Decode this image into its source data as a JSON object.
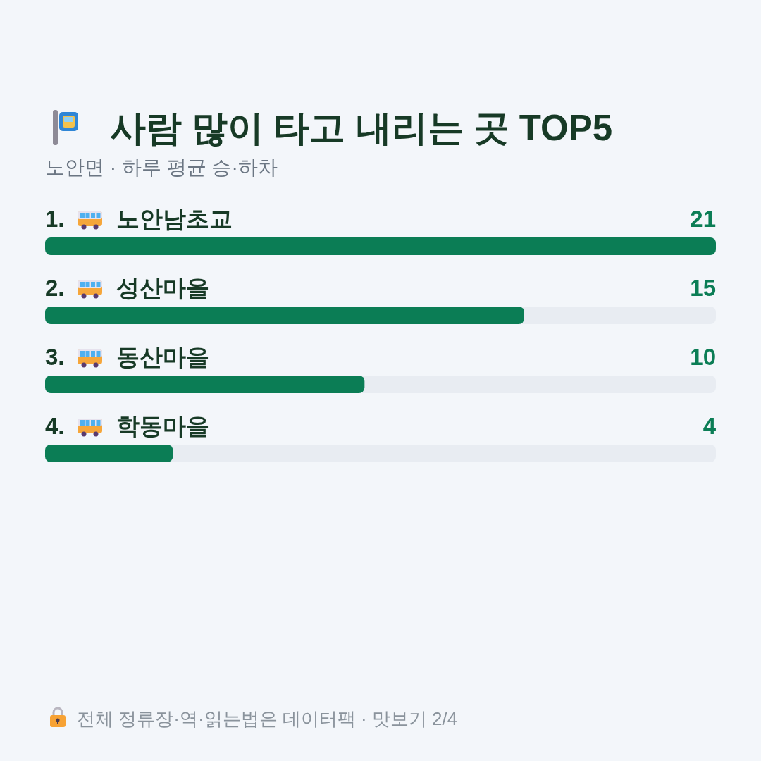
{
  "chart_data": {
    "type": "bar",
    "orientation": "horizontal",
    "title": "사람 많이 타고 내리는 곳 TOP5",
    "subtitle": "노안면 · 하루 평균 승·하차",
    "categories": [
      "1. 노안남초교",
      "2. 성산마을",
      "3. 동산마을",
      "4. 학동마을"
    ],
    "values": [
      21,
      15,
      10,
      4
    ],
    "color": "#0b7d55",
    "data_labels": true,
    "annotations": [
      "전체 정류장·역·읽는법은 데이터팩 · 맛보기 2/4"
    ]
  }
}
